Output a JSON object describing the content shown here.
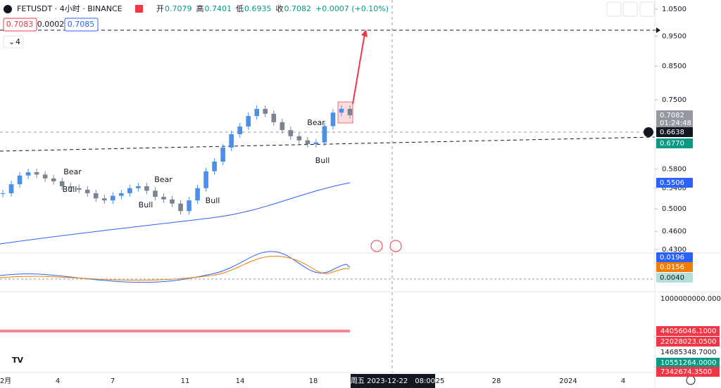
{
  "header": {
    "symbol": "FETUSDT · 4小时 · BINANCE",
    "ohlc": [
      {
        "label": "开",
        "value": "0.7079"
      },
      {
        "label": "高",
        "value": "0.7401"
      },
      {
        "label": "低",
        "value": "0.6935"
      },
      {
        "label": "收",
        "value": "0.7082"
      }
    ],
    "change": "+0.0007 (+0.10%)"
  },
  "quote": {
    "bid": "0.7083",
    "spread": "0.0002",
    "ask": "0.7085",
    "layers": "4"
  },
  "chart_data": {
    "type": "candlestick",
    "log": true,
    "up_color": "#4a8fe8",
    "down_color": "#7b8391",
    "closes": [
      0.53,
      0.548,
      0.566,
      0.573,
      0.568,
      0.56,
      0.554,
      0.544,
      0.54,
      0.537,
      0.53,
      0.52,
      0.516,
      0.525,
      0.53,
      0.54,
      0.544,
      0.535,
      0.523,
      0.518,
      0.51,
      0.496,
      0.516,
      0.54,
      0.575,
      0.596,
      0.628,
      0.66,
      0.679,
      0.706,
      0.725,
      0.712,
      0.69,
      0.67,
      0.655,
      0.645,
      0.636,
      0.64,
      0.68,
      0.715,
      0.725,
      0.7082
    ],
    "ylim": [
      0.43,
      1.05
    ],
    "yticks": [
      {
        "value": 1.05,
        "label": "1.0500"
      },
      {
        "value": 0.95,
        "label": "0.9500"
      },
      {
        "value": 0.85,
        "label": "0.8500"
      },
      {
        "value": 0.75,
        "label": "0.7500"
      },
      {
        "value": 0.58,
        "label": "0.5800"
      },
      {
        "value": 0.54,
        "label": "0.5400"
      },
      {
        "value": 0.5,
        "label": "0.5000"
      },
      {
        "value": 0.46,
        "label": "0.4600"
      },
      {
        "value": 0.43,
        "label": "0.4300"
      }
    ],
    "annotations": [
      "Bear",
      "Bear",
      "Bear",
      "Bull",
      "Bull",
      "Bull",
      "Bull"
    ],
    "time_labels": [
      "2月",
      "4",
      "7",
      "11",
      "14",
      "18",
      "25",
      "28",
      "2024",
      "4"
    ],
    "crosshair_time": "周五 2023-12-22　08:00"
  },
  "price_badges": [
    {
      "label": "0.7082",
      "color": "#9598a1"
    },
    {
      "label": "01:24:48",
      "color": "#9598a1"
    },
    {
      "label": "0.6638",
      "color": "#131722"
    },
    {
      "label": "0.6770",
      "color": "#089981"
    },
    {
      "label": "0.5506",
      "color": "#2962ff"
    },
    {
      "label": "0.0196",
      "color": "#2962ff"
    },
    {
      "label": "0.0156",
      "color": "#f57c00"
    },
    {
      "label": "0.0040",
      "color": "#b2dfdb"
    }
  ],
  "volume_labels": [
    {
      "label": "1000000000.0000",
      "color": ""
    },
    {
      "label": "44056046.1000",
      "color": "#f23645"
    },
    {
      "label": "22028023.0500",
      "color": "#f23645"
    },
    {
      "label": "14685348.7000",
      "color": ""
    },
    {
      "label": "10551264.0000",
      "color": "#089981"
    },
    {
      "label": "7342674.3500",
      "color": "#f23645"
    }
  ]
}
